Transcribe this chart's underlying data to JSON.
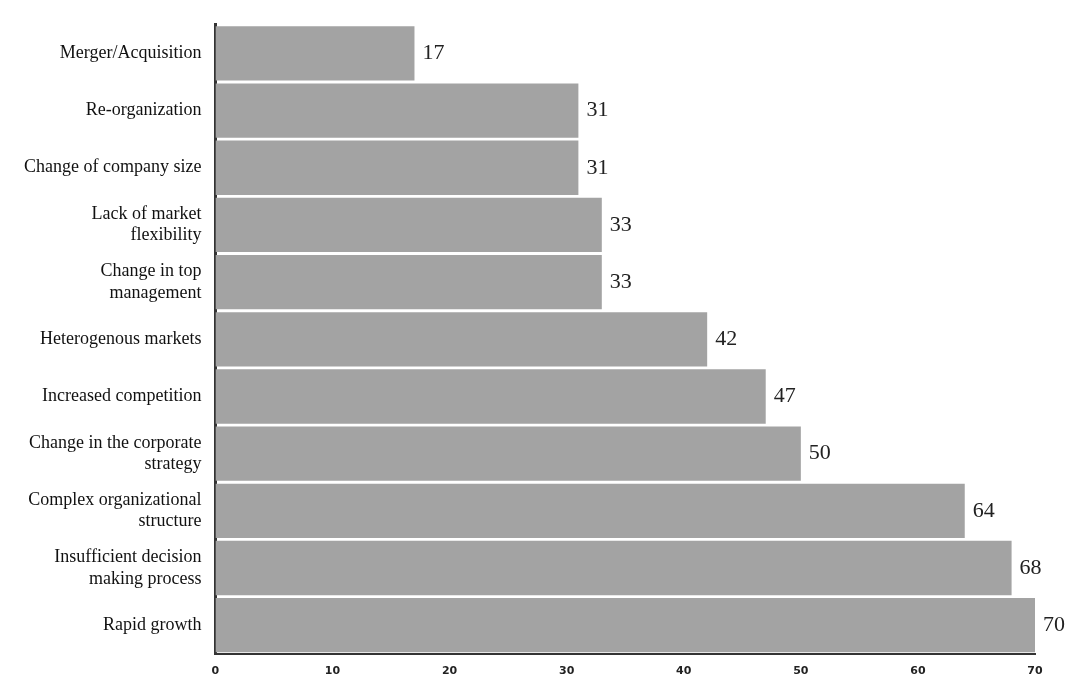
{
  "chart_data": {
    "type": "bar",
    "orientation": "horizontal",
    "categories": [
      "Merger/Acquisition",
      "Re-organization",
      "Change of company size",
      "Lack of market flexibility",
      "Change in top management",
      "Heterogenous markets",
      "Increased competition",
      "Change in the corporate strategy",
      "Complex organizational structure",
      "Insufficient decision making process",
      "Rapid growth"
    ],
    "values": [
      17,
      31,
      31,
      33,
      33,
      42,
      47,
      50,
      64,
      68,
      70
    ],
    "color": "#a3a3a3",
    "xlim": [
      0,
      70
    ],
    "xticks": [
      0,
      10,
      20,
      30,
      40,
      50,
      60,
      70
    ],
    "data_labels": true,
    "grid": false,
    "legend": false
  }
}
